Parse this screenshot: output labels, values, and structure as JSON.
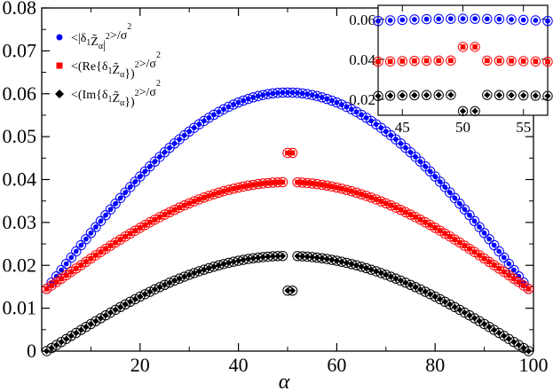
{
  "chart_data": {
    "type": "scatter",
    "title": "",
    "xlabel": "α",
    "ylabel": "",
    "xlim": [
      0,
      100
    ],
    "ylim": [
      0,
      0.08
    ],
    "x_ticks": [
      20,
      40,
      60,
      80,
      100
    ],
    "y_ticks": [
      0,
      0.01,
      0.02,
      0.03,
      0.04,
      0.05,
      0.06,
      0.07,
      0.08
    ],
    "x_tick_labels": [
      "20",
      "40",
      "60",
      "80",
      "100"
    ],
    "y_tick_labels": [
      "0",
      "0.01",
      "0.02",
      "0.03",
      "0.04",
      "0.05",
      "0.06",
      "0.07",
      "0.08"
    ],
    "legend_position": "top-left",
    "series": [
      {
        "name": "<|δ1Z̃α|2>/σ2",
        "label_parts": {
          "pre": "<|δ",
          "sub1": "1",
          "mid": "Z̃",
          "sub2": "α",
          "post": "|",
          "sup": "2",
          "tail": ">/σ",
          "sup2": "2"
        },
        "color": "#0000ff",
        "marker": "circle",
        "shape": "sine",
        "x_range": [
          1,
          99
        ],
        "end_value": 0.0145,
        "peak_value": 0.0603
      },
      {
        "name": "<(Re{δ1Z̃α})2>/σ2",
        "label_parts": {
          "pre": "<(Re{δ",
          "sub1": "1",
          "mid": "Z̃",
          "sub2": "α",
          "post": "})",
          "sup": "2",
          "tail": ">/σ",
          "sup2": "2"
        },
        "color": "#ff0000",
        "marker": "square",
        "shape": "sine-gap",
        "x_range": [
          1,
          99
        ],
        "end_value": 0.0145,
        "peak_value": 0.0394,
        "gap_x": [
          50,
          51
        ],
        "gap_value": 0.0462
      },
      {
        "name": "<(Im{δ1Z̃α})2>/σ2",
        "label_parts": {
          "pre": "<(Im{δ",
          "sub1": "1",
          "mid": "Z̃",
          "sub2": "α",
          "post": "})",
          "sup": "2",
          "tail": ">/σ",
          "sup2": "2"
        },
        "color": "#000000",
        "marker": "diamond",
        "shape": "sine-gap",
        "x_range": [
          1,
          99
        ],
        "end_value": 0.0,
        "peak_value": 0.0222,
        "gap_x": [
          50,
          51
        ],
        "gap_value": 0.0141
      }
    ],
    "inset": {
      "xlim": [
        43,
        57
      ],
      "ylim": [
        0.012,
        0.067
      ],
      "x_ticks": [
        45,
        50,
        55
      ],
      "y_ticks": [
        0.02,
        0.04,
        0.06
      ],
      "x_tick_labels": [
        "45",
        "50",
        "55"
      ],
      "y_tick_labels": [
        "0.02",
        "0.04",
        "0.06"
      ]
    }
  }
}
